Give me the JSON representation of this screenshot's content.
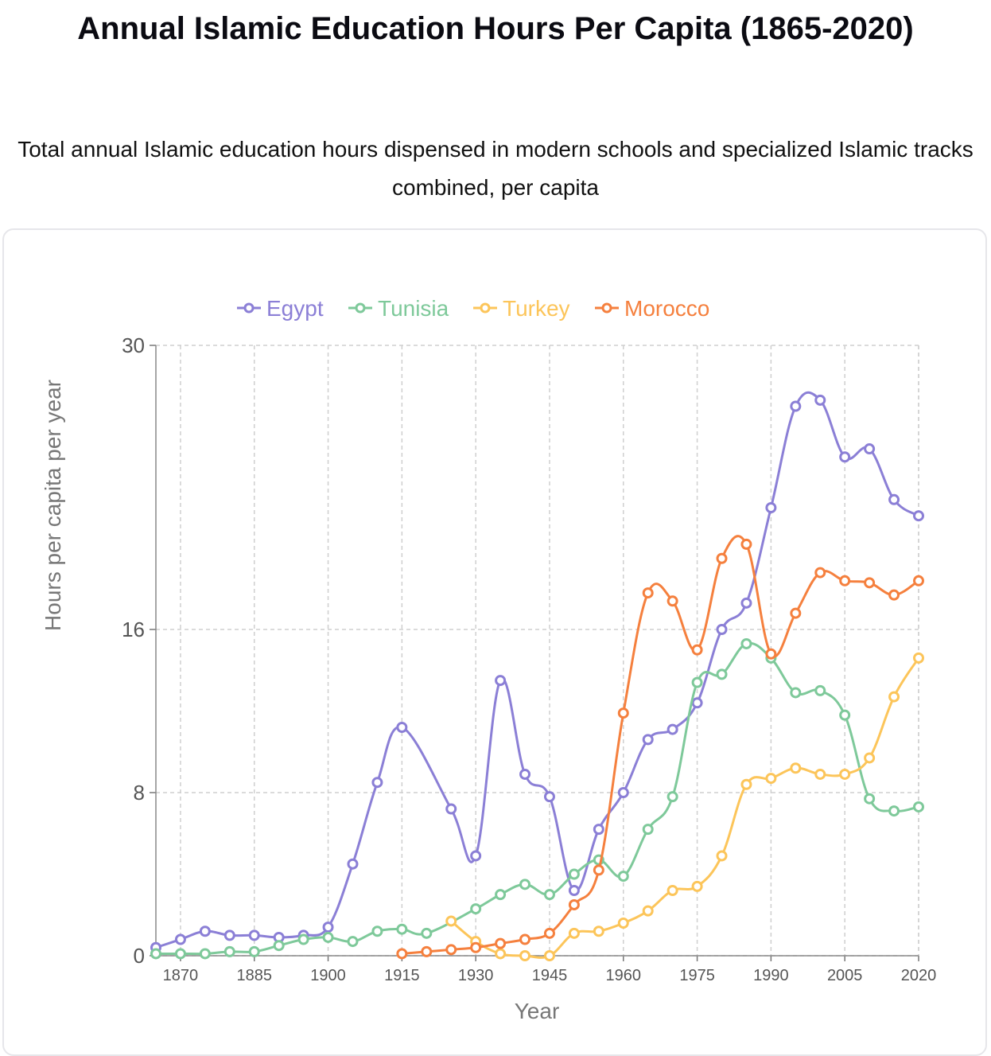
{
  "title": "Annual Islamic Education Hours Per Capita (1865-2020)",
  "subtitle": "Total annual Islamic education hours dispensed in modern schools and specialized Islamic tracks combined, per capita",
  "chart_data": {
    "type": "line",
    "xlabel": "Year",
    "ylabel": "Hours per capita per year",
    "xlim": [
      1865,
      2020
    ],
    "ylim": [
      0,
      30
    ],
    "x_ticks": [
      "1870",
      "1885",
      "1900",
      "1915",
      "1930",
      "1945",
      "1960",
      "1975",
      "1990",
      "2005",
      "2020"
    ],
    "y_ticks": [
      "0",
      "8",
      "16",
      "30"
    ],
    "grid": true,
    "legend_position": "top",
    "series": [
      {
        "name": "Egypt",
        "color": "#8b7fd6",
        "x": [
          1865,
          1870,
          1875,
          1880,
          1885,
          1890,
          1895,
          1900,
          1905,
          1910,
          1915,
          1925,
          1930,
          1935,
          1940,
          1945,
          1950,
          1955,
          1960,
          1965,
          1970,
          1975,
          1980,
          1985,
          1990,
          1995,
          2000,
          2005,
          2010,
          2015,
          2020
        ],
        "y": [
          0.4,
          0.8,
          1.2,
          1.0,
          1.0,
          0.9,
          1.0,
          1.4,
          4.5,
          8.5,
          11.2,
          7.2,
          4.9,
          13.5,
          8.9,
          7.8,
          3.2,
          6.2,
          8.0,
          10.6,
          11.1,
          12.4,
          16.0,
          17.3,
          22.0,
          27.0,
          27.3,
          24.5,
          24.9,
          22.4,
          21.6
        ]
      },
      {
        "name": "Tunisia",
        "color": "#7ec99a",
        "x": [
          1865,
          1870,
          1875,
          1880,
          1885,
          1890,
          1895,
          1900,
          1905,
          1910,
          1915,
          1920,
          1930,
          1935,
          1940,
          1945,
          1950,
          1955,
          1960,
          1965,
          1970,
          1975,
          1980,
          1985,
          1990,
          1995,
          2000,
          2005,
          2010,
          2015,
          2020
        ],
        "y": [
          0.1,
          0.1,
          0.1,
          0.2,
          0.2,
          0.5,
          0.8,
          0.9,
          0.7,
          1.2,
          1.3,
          1.1,
          2.3,
          3.0,
          3.5,
          3.0,
          4.0,
          4.7,
          3.9,
          6.2,
          7.8,
          13.4,
          13.8,
          15.3,
          14.6,
          12.9,
          13.0,
          11.8,
          7.7,
          7.1,
          7.3
        ]
      },
      {
        "name": "Turkey",
        "color": "#fcc55a",
        "x": [
          1925,
          1930,
          1935,
          1940,
          1945,
          1950,
          1955,
          1960,
          1965,
          1970,
          1975,
          1980,
          1985,
          1990,
          1995,
          2000,
          2005,
          2010,
          2015,
          2020
        ],
        "y": [
          1.7,
          0.7,
          0.1,
          0.0,
          0.0,
          1.1,
          1.2,
          1.6,
          2.2,
          3.2,
          3.4,
          4.9,
          8.4,
          8.7,
          9.2,
          8.9,
          8.9,
          9.7,
          12.7,
          14.6
        ]
      },
      {
        "name": "Morocco",
        "color": "#f5803e",
        "x": [
          1915,
          1920,
          1925,
          1930,
          1935,
          1940,
          1945,
          1950,
          1955,
          1960,
          1965,
          1970,
          1975,
          1980,
          1985,
          1990,
          1995,
          2000,
          2005,
          2010,
          2015,
          2020
        ],
        "y": [
          0.1,
          0.2,
          0.3,
          0.4,
          0.6,
          0.8,
          1.1,
          2.5,
          4.2,
          11.9,
          17.8,
          17.4,
          15.0,
          19.5,
          20.2,
          14.8,
          16.8,
          18.8,
          18.4,
          18.3,
          17.7,
          18.4
        ]
      }
    ]
  }
}
